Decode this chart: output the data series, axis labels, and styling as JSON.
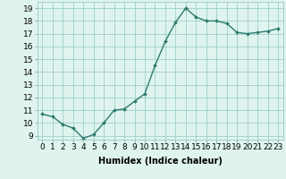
{
  "x": [
    0,
    1,
    2,
    3,
    4,
    5,
    6,
    7,
    8,
    9,
    10,
    11,
    12,
    13,
    14,
    15,
    16,
    17,
    18,
    19,
    20,
    21,
    22,
    23
  ],
  "y": [
    10.7,
    10.5,
    9.9,
    9.6,
    8.8,
    9.1,
    10.0,
    11.0,
    11.1,
    11.7,
    12.3,
    14.5,
    16.4,
    17.9,
    19.0,
    18.3,
    18.0,
    18.0,
    17.8,
    17.1,
    17.0,
    17.1,
    17.2,
    17.4
  ],
  "xlabel": "Humidex (Indice chaleur)",
  "ylim_min": 8.7,
  "ylim_max": 19.5,
  "xlim_min": -0.5,
  "xlim_max": 23.5,
  "yticks": [
    9,
    10,
    11,
    12,
    13,
    14,
    15,
    16,
    17,
    18,
    19
  ],
  "xticks": [
    0,
    1,
    2,
    3,
    4,
    5,
    6,
    7,
    8,
    9,
    10,
    11,
    12,
    13,
    14,
    15,
    16,
    17,
    18,
    19,
    20,
    21,
    22,
    23
  ],
  "line_color": "#2d7a6e",
  "marker": "D",
  "marker_size": 2.0,
  "background_color": "#dff4ef",
  "grid_color": "#9ecfc7",
  "line_width": 1.0,
  "xlabel_fontsize": 7,
  "tick_fontsize": 6.5
}
